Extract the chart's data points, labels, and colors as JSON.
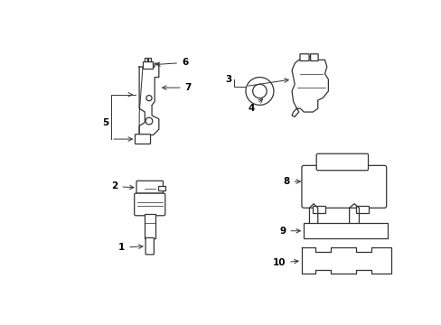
{
  "bg_color": "#ffffff",
  "line_color": "#333333",
  "label_color": "#000000",
  "figsize": [
    4.89,
    3.6
  ],
  "dpi": 100,
  "lw": 0.9
}
